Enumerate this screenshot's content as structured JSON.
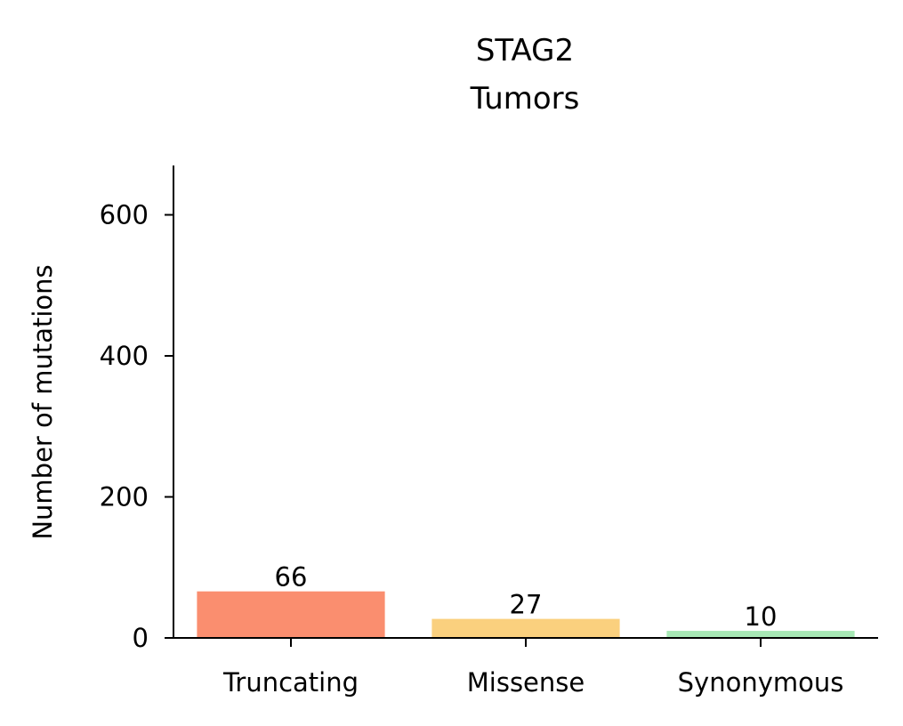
{
  "chart_data": {
    "type": "bar",
    "title_lines": [
      "STAG2",
      "Tumors"
    ],
    "xlabel": "",
    "ylabel": "Number of mutations",
    "categories": [
      "Truncating",
      "Missense",
      "Synonymous"
    ],
    "values": [
      66,
      27,
      10
    ],
    "value_labels": [
      "66",
      "27",
      "10"
    ],
    "colors": [
      "#fa8e6f",
      "#fad07e",
      "#a7e8b5"
    ],
    "ylim": [
      0,
      670
    ],
    "yticks": [
      0,
      200,
      400,
      600
    ],
    "ytick_labels": [
      "0",
      "200",
      "400",
      "600"
    ],
    "grid": false,
    "legend": "none"
  }
}
